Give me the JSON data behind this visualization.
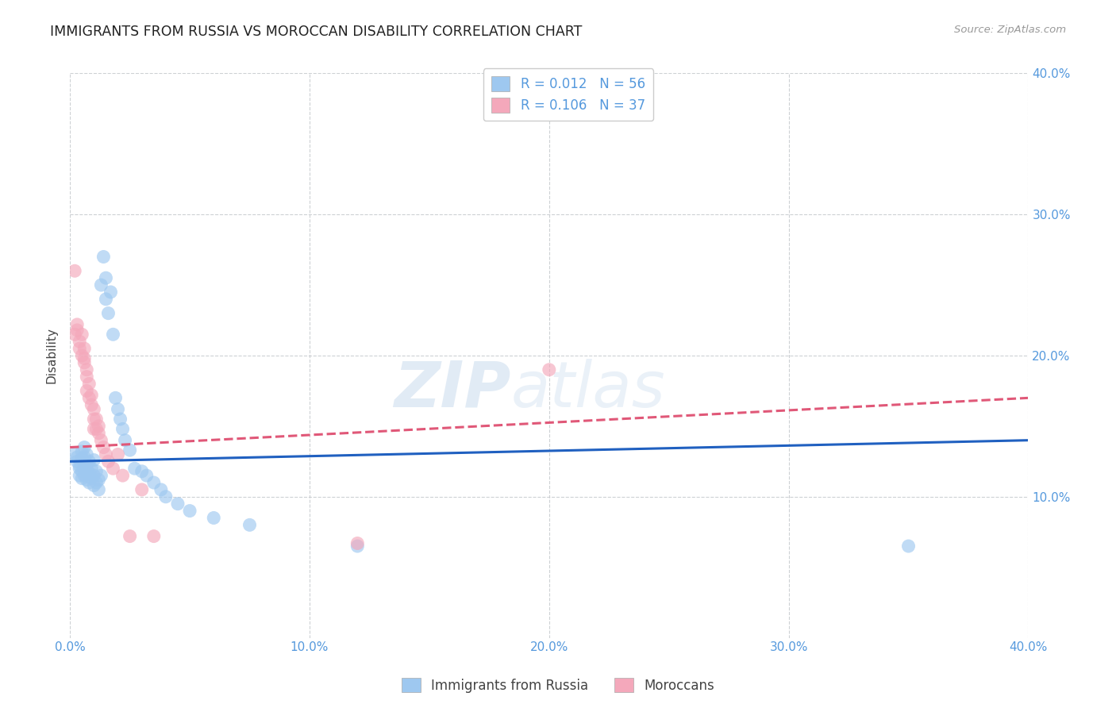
{
  "title": "IMMIGRANTS FROM RUSSIA VS MOROCCAN DISABILITY CORRELATION CHART",
  "source": "Source: ZipAtlas.com",
  "ylabel": "Disability",
  "xlim": [
    0.0,
    0.4
  ],
  "ylim": [
    0.0,
    0.4
  ],
  "xticks": [
    0.0,
    0.1,
    0.2,
    0.3,
    0.4
  ],
  "yticks": [
    0.1,
    0.2,
    0.3,
    0.4
  ],
  "xtick_labels": [
    "0.0%",
    "10.0%",
    "20.0%",
    "30.0%",
    "40.0%"
  ],
  "ytick_labels": [
    "10.0%",
    "20.0%",
    "30.0%",
    "40.0%"
  ],
  "watermark_zip": "ZIP",
  "watermark_atlas": "atlas",
  "blue_label": "Immigrants from Russia",
  "pink_label": "Moroccans",
  "blue_R": "0.012",
  "blue_N": "56",
  "pink_R": "0.106",
  "pink_N": "37",
  "blue_color": "#9ec8f0",
  "pink_color": "#f4a8bb",
  "blue_trend_color": "#2060c0",
  "pink_trend_color": "#e05878",
  "background_color": "#ffffff",
  "grid_color": "#c8ccd0",
  "title_color": "#222222",
  "axis_label_color": "#444444",
  "right_tick_color": "#5599dd",
  "blue_scatter_x": [
    0.002,
    0.003,
    0.003,
    0.004,
    0.004,
    0.004,
    0.005,
    0.005,
    0.005,
    0.005,
    0.006,
    0.006,
    0.006,
    0.006,
    0.007,
    0.007,
    0.007,
    0.007,
    0.008,
    0.008,
    0.008,
    0.009,
    0.009,
    0.01,
    0.01,
    0.01,
    0.011,
    0.011,
    0.012,
    0.012,
    0.013,
    0.013,
    0.014,
    0.015,
    0.015,
    0.016,
    0.017,
    0.018,
    0.019,
    0.02,
    0.021,
    0.022,
    0.023,
    0.025,
    0.027,
    0.03,
    0.032,
    0.035,
    0.038,
    0.04,
    0.045,
    0.05,
    0.06,
    0.075,
    0.12,
    0.35
  ],
  "blue_scatter_y": [
    0.13,
    0.125,
    0.128,
    0.12,
    0.115,
    0.122,
    0.113,
    0.118,
    0.127,
    0.132,
    0.121,
    0.115,
    0.128,
    0.135,
    0.112,
    0.118,
    0.123,
    0.13,
    0.11,
    0.117,
    0.125,
    0.113,
    0.12,
    0.108,
    0.115,
    0.126,
    0.11,
    0.118,
    0.105,
    0.112,
    0.115,
    0.25,
    0.27,
    0.24,
    0.255,
    0.23,
    0.245,
    0.215,
    0.17,
    0.162,
    0.155,
    0.148,
    0.14,
    0.133,
    0.12,
    0.118,
    0.115,
    0.11,
    0.105,
    0.1,
    0.095,
    0.09,
    0.085,
    0.08,
    0.065,
    0.065
  ],
  "pink_scatter_x": [
    0.002,
    0.002,
    0.003,
    0.003,
    0.004,
    0.004,
    0.005,
    0.005,
    0.006,
    0.006,
    0.006,
    0.007,
    0.007,
    0.007,
    0.008,
    0.008,
    0.009,
    0.009,
    0.01,
    0.01,
    0.01,
    0.011,
    0.011,
    0.012,
    0.012,
    0.013,
    0.014,
    0.015,
    0.016,
    0.018,
    0.02,
    0.022,
    0.025,
    0.03,
    0.035,
    0.12,
    0.2
  ],
  "pink_scatter_y": [
    0.26,
    0.215,
    0.222,
    0.218,
    0.21,
    0.205,
    0.215,
    0.2,
    0.198,
    0.205,
    0.195,
    0.19,
    0.185,
    0.175,
    0.18,
    0.17,
    0.172,
    0.165,
    0.162,
    0.155,
    0.148,
    0.155,
    0.148,
    0.145,
    0.15,
    0.14,
    0.135,
    0.13,
    0.125,
    0.12,
    0.13,
    0.115,
    0.072,
    0.105,
    0.072,
    0.067,
    0.19
  ],
  "blue_trend_x": [
    0.0,
    0.4
  ],
  "blue_trend_y": [
    0.125,
    0.14
  ],
  "pink_trend_x": [
    0.0,
    0.4
  ],
  "pink_trend_y": [
    0.135,
    0.17
  ]
}
